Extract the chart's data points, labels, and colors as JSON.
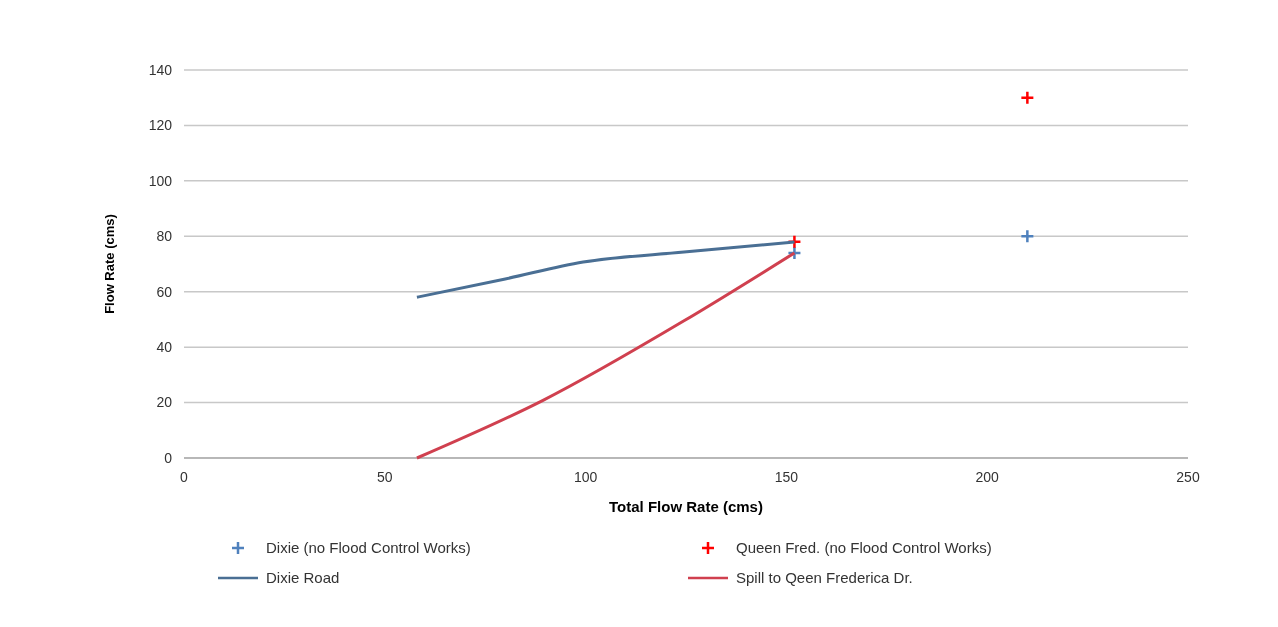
{
  "chart_data": {
    "type": "scatter",
    "xlabel": "Total Flow Rate (cms)",
    "ylabel": "Flow Rate (cms)",
    "xlim": [
      0,
      250
    ],
    "xticks": [
      0,
      50,
      100,
      150,
      200,
      250
    ],
    "ylim": [
      0,
      140
    ],
    "yticks": [
      0,
      20,
      40,
      60,
      80,
      100,
      120,
      140
    ],
    "grid": "y",
    "legend": "bottom",
    "series": [
      {
        "name": "Dixie (no Flood Control Works)",
        "marker": "cross",
        "color": "#4f81bd",
        "x": [
          152,
          210
        ],
        "values": [
          74,
          80
        ]
      },
      {
        "name": "Queen Fred. (no Flood Control Works)",
        "marker": "cross",
        "color": "#ff0000",
        "x": [
          152,
          210
        ],
        "values": [
          78,
          130
        ]
      },
      {
        "name": "Dixie Road",
        "type": "line",
        "color": "#4a6f94",
        "x": [
          58,
          80,
          99.4,
          124.5,
          152
        ],
        "values": [
          58,
          64.6,
          70.7,
          74.3,
          77.9
        ]
      },
      {
        "name": "Spill to Qeen Frederica Dr.",
        "type": "line",
        "color": "#d0404f",
        "x": [
          58,
          89.4,
          124.5,
          152
        ],
        "values": [
          0,
          20.8,
          49.5,
          74
        ]
      }
    ]
  }
}
